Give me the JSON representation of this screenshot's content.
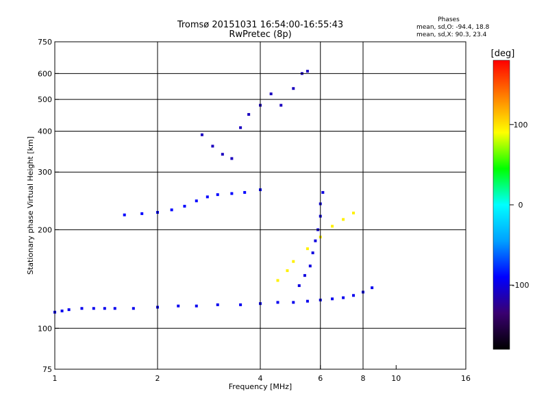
{
  "chart_data": {
    "type": "scatter",
    "title": "Tromsø 20151031 16:54:00-16:55:43",
    "subtitle": "RwPretec (8p)",
    "xlabel": "Frequency [MHz]",
    "ylabel": "Stationary phase Virtual Height [km]",
    "x_scale": "log",
    "y_scale": "log",
    "xlim": [
      1,
      16
    ],
    "ylim": [
      75,
      750
    ],
    "x_ticks": [
      1,
      2,
      4,
      6,
      8,
      10,
      16
    ],
    "y_ticks": [
      75,
      100,
      200,
      300,
      400,
      500,
      600,
      750
    ],
    "grid_x": [
      2,
      4,
      6,
      8
    ],
    "grid_y": [
      100,
      200,
      300,
      400,
      500,
      600
    ],
    "grid": true,
    "stats": {
      "title": "Phases",
      "line_o": "mean, sd,O: -94.4, 18.8",
      "line_x": "mean, sd,X:  90.3, 23.4"
    },
    "colorbar": {
      "label": "[deg]",
      "ticks": [
        {
          "value": 100,
          "label": "100"
        },
        {
          "value": 0,
          "label": "0"
        },
        {
          "value": -100,
          "label": "-100"
        }
      ],
      "range": [
        -180,
        180
      ],
      "colors": [
        "#000000",
        "#3a0070",
        "#0000ff",
        "#00a0ff",
        "#00ffff",
        "#00ff00",
        "#ffff00",
        "#ff8000",
        "#ff0000"
      ]
    },
    "series": [
      {
        "group": "O-trace",
        "phase_deg": -95,
        "x": [
          1.0,
          1.05,
          1.1,
          1.2,
          1.3,
          1.4,
          1.5,
          1.7,
          2.0,
          2.3,
          2.6,
          3.0,
          3.5,
          4.0,
          4.5,
          5.0,
          5.5,
          6.0,
          6.5,
          7.0,
          7.5,
          8.0,
          8.5
        ],
        "y": [
          112,
          113,
          114,
          115,
          115,
          115,
          115,
          115,
          116,
          117,
          117,
          118,
          118,
          119,
          120,
          120,
          121,
          122,
          123,
          124,
          126,
          129,
          133
        ]
      },
      {
        "group": "F-rise",
        "phase_deg": -100,
        "x": [
          5.2,
          5.4,
          5.6,
          5.7,
          5.8,
          5.9,
          6.0,
          6.0,
          6.1
        ],
        "y": [
          135,
          145,
          155,
          170,
          185,
          200,
          220,
          240,
          260
        ]
      },
      {
        "group": "F-layer band",
        "phase_deg": -90,
        "x": [
          1.6,
          1.8,
          2.0,
          2.2,
          2.4,
          2.6,
          2.8,
          3.0,
          3.3,
          3.6,
          4.0
        ],
        "y": [
          222,
          224,
          226,
          230,
          236,
          245,
          252,
          256,
          258,
          260,
          265
        ]
      },
      {
        "group": "Upper echoes",
        "phase_deg": -110,
        "x": [
          2.7,
          2.9,
          3.1,
          3.3,
          3.5,
          3.7,
          4.0,
          4.3,
          4.6,
          5.0,
          5.3,
          5.5
        ],
        "y": [
          390,
          360,
          340,
          330,
          410,
          450,
          480,
          520,
          480,
          540,
          600,
          610
        ]
      },
      {
        "group": "X-trace",
        "phase_deg": 95,
        "x": [
          4.5,
          4.8,
          5.0,
          5.5,
          6.0,
          6.5,
          7.0,
          7.5
        ],
        "y": [
          140,
          150,
          160,
          175,
          190,
          205,
          215,
          225
        ]
      }
    ]
  }
}
